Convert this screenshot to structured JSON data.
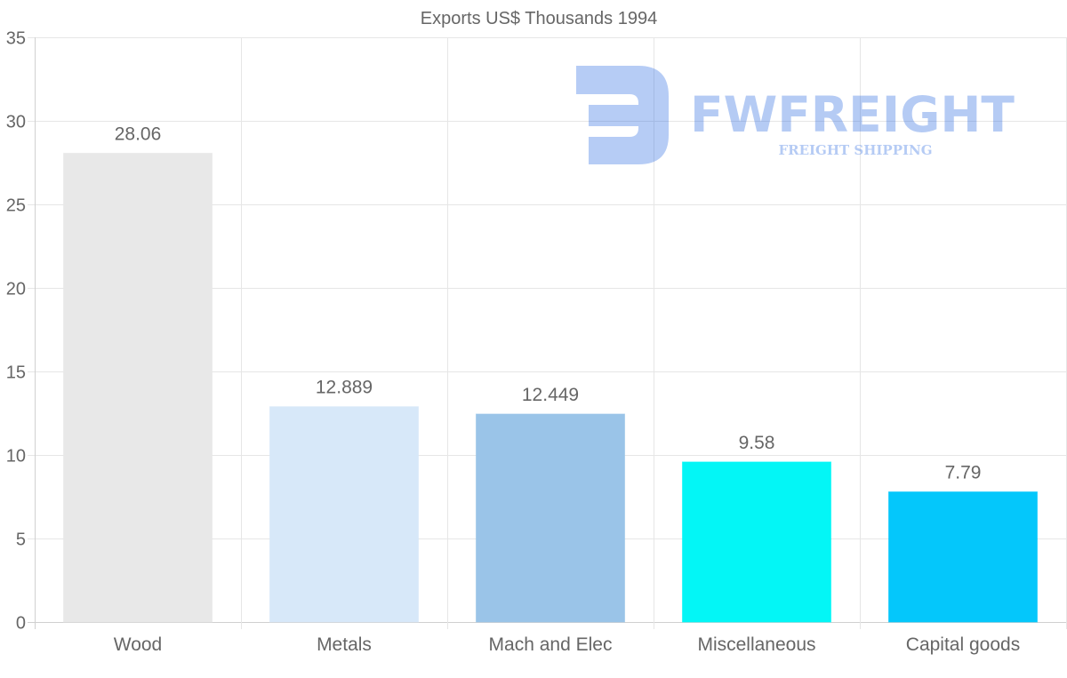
{
  "chart_data": {
    "type": "bar",
    "title": "Exports US$ Thousands 1994",
    "xlabel": "",
    "ylabel": "",
    "categories": [
      "Wood",
      "Metals",
      "Mach and Elec",
      "Miscellaneous",
      "Capital goods"
    ],
    "values": [
      28.06,
      12.889,
      12.449,
      9.58,
      7.79
    ],
    "value_labels": [
      "28.06",
      "12.889",
      "12.449",
      "9.58",
      "7.79"
    ],
    "colors": [
      "#e8e8e8",
      "#d7e8f9",
      "#9ac4e8",
      "#03f6f6",
      "#04c7fb"
    ],
    "ylim": [
      0,
      35
    ],
    "yticks": [
      0,
      5,
      10,
      15,
      20,
      25,
      30,
      35
    ],
    "grid": true,
    "legend": "none"
  },
  "watermark": {
    "brand": "FWFREIGHT",
    "tagline": "FREIGHT SHIPPING",
    "color": "#1c5fe0"
  }
}
